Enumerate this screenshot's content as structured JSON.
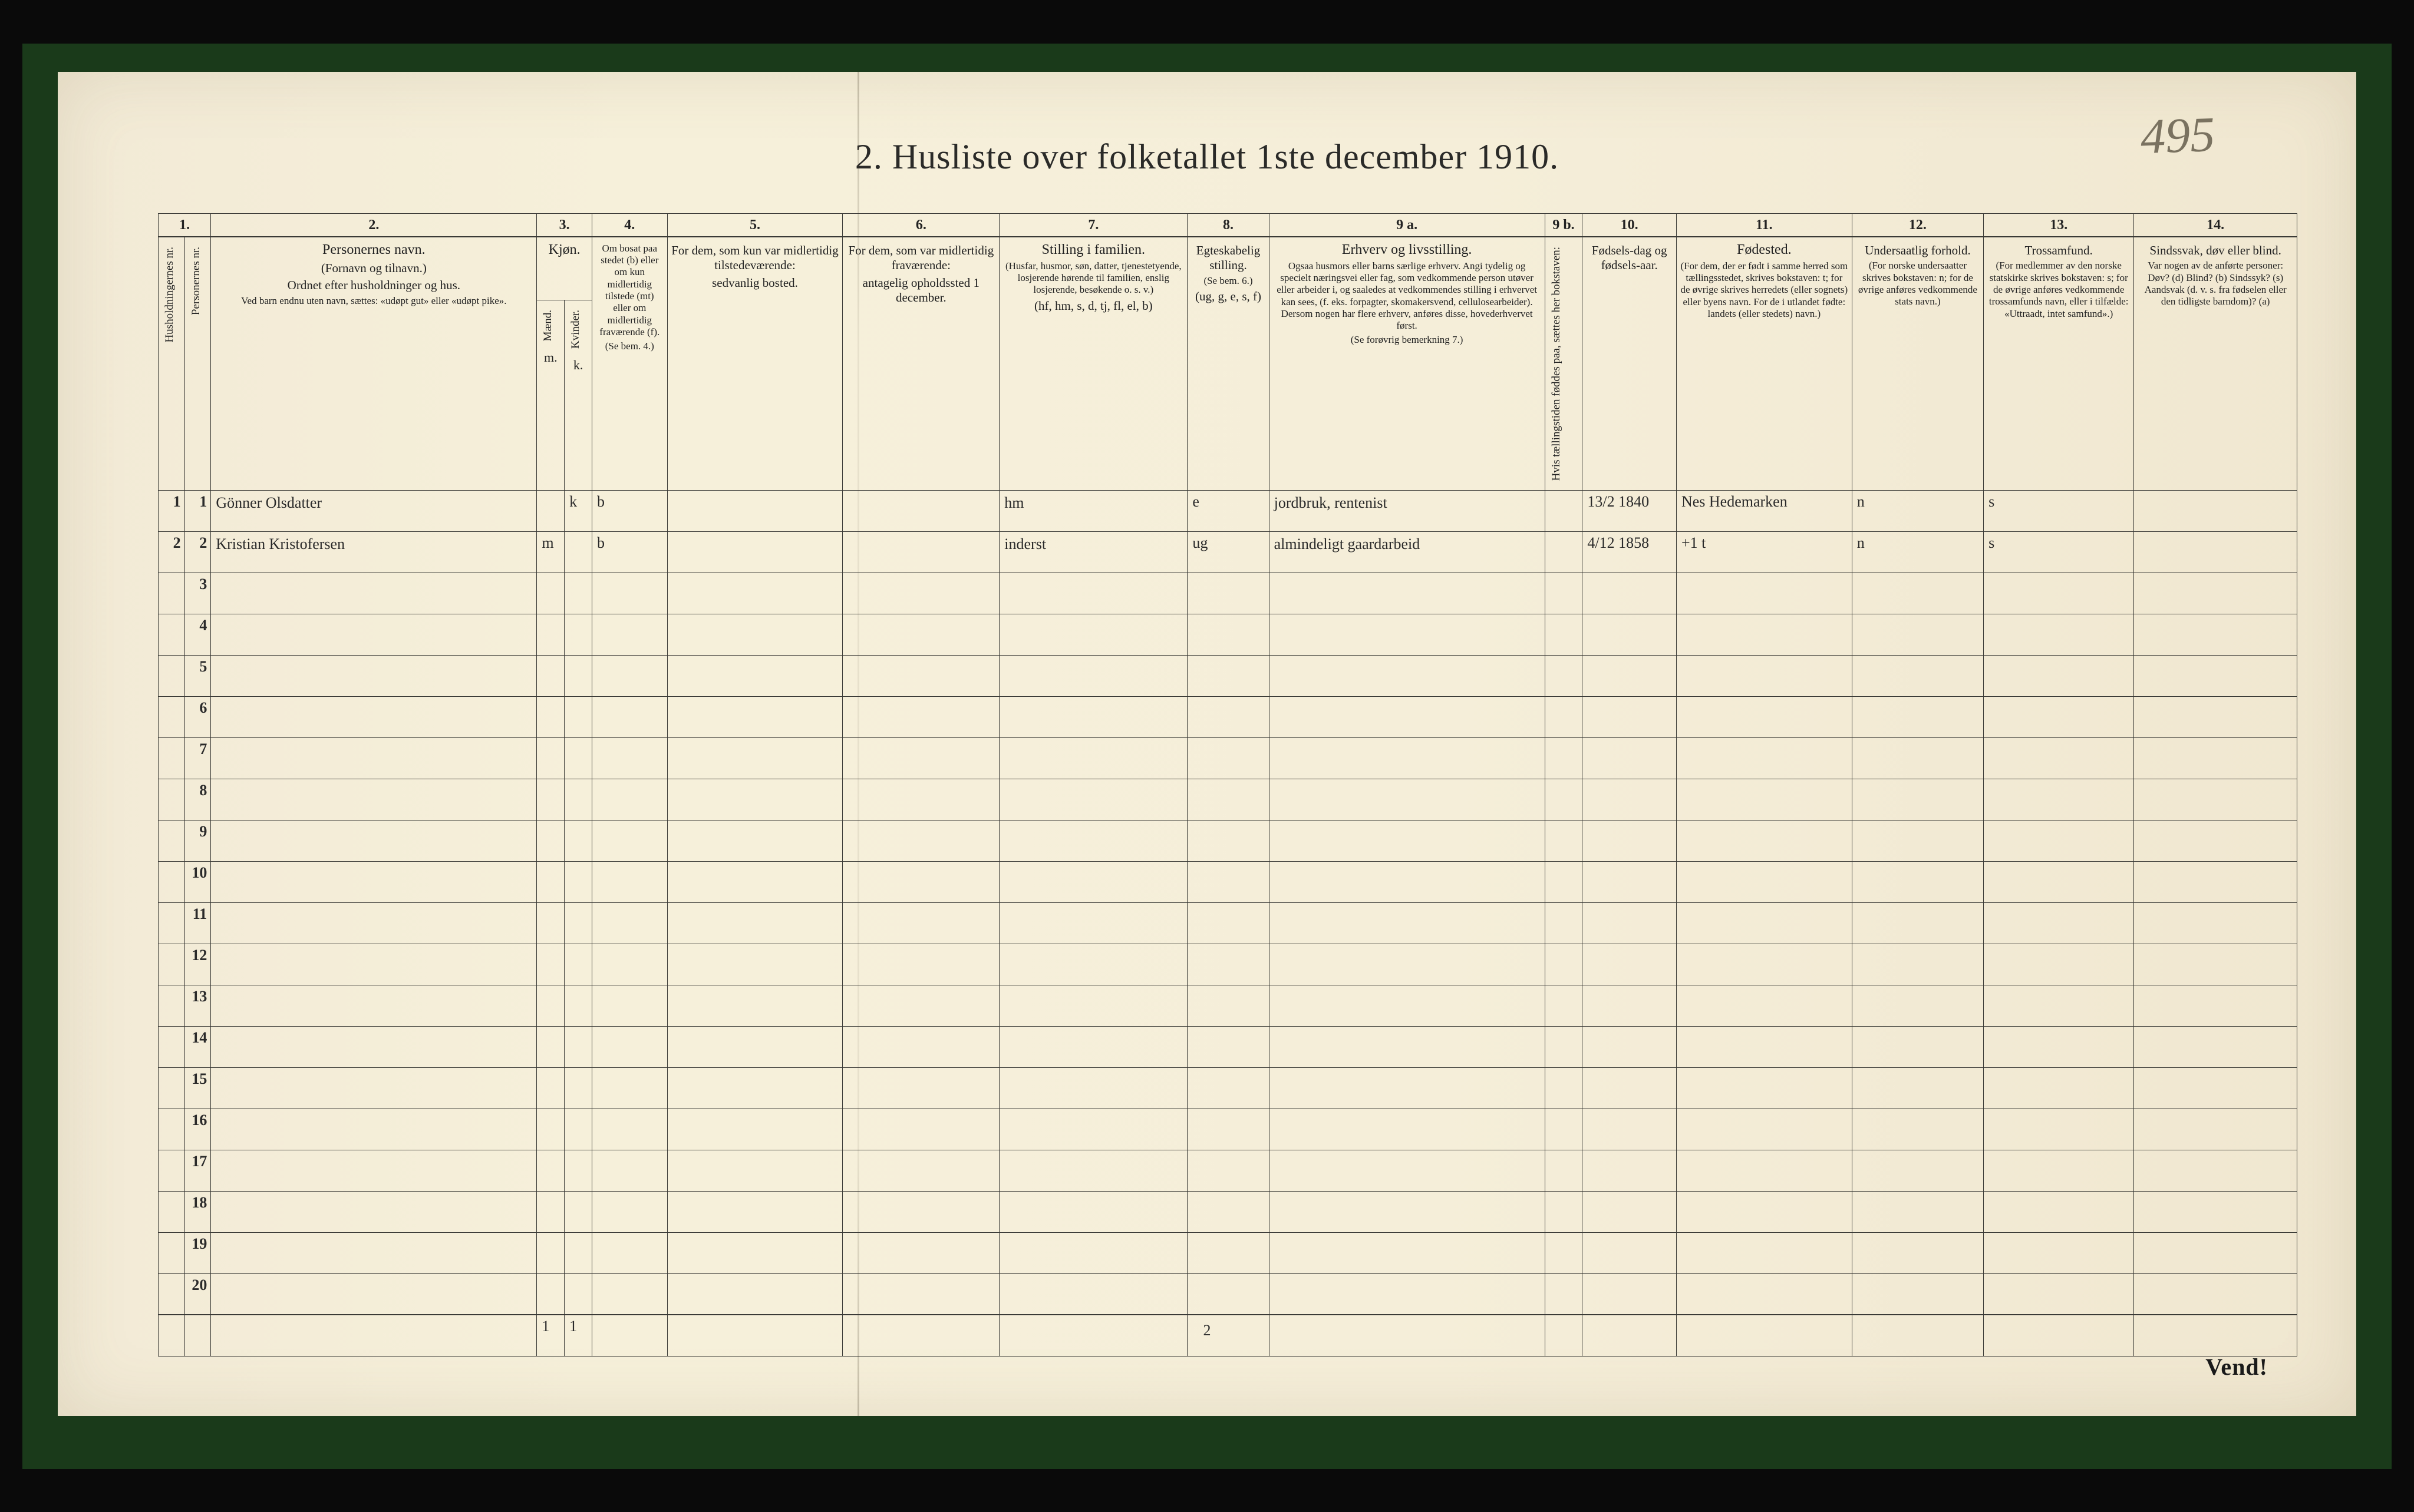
{
  "page": {
    "title": "2.  Husliste over folketallet 1ste december 1910.",
    "annotation_top_right": "495",
    "footer_page_number": "2",
    "turn_over": "Vend!"
  },
  "columns": {
    "nums": [
      "1.",
      "",
      "2.",
      "3.",
      "",
      "4.",
      "5.",
      "6.",
      "7.",
      "8.",
      "9 a.",
      "9 b.",
      "10.",
      "11.",
      "12.",
      "13.",
      "14."
    ],
    "h1_vert": "Husholdningernes nr.",
    "h1b_vert": "Personernes nr.",
    "h2_title": "Personernes navn.",
    "h2_sub1": "(Fornavn og tilnavn.)",
    "h2_sub2": "Ordnet efter husholdninger og hus.",
    "h2_sub3": "Ved barn endnu uten navn, sættes: «udøpt gut» eller «udøpt pike».",
    "h3_title": "Kjøn.",
    "h3_sub_m": "Mænd.",
    "h3_sub_k": "Kvinder.",
    "h3_mk_m": "m.",
    "h3_mk_k": "k.",
    "h4_title": "Om bosat paa stedet (b) eller om kun midlertidig tilstede (mt) eller om midlertidig fraværende (f).",
    "h4_sub": "(Se bem. 4.)",
    "h5_title": "For dem, som kun var midlertidig tilstedeværende:",
    "h5_sub": "sedvanlig bosted.",
    "h6_title": "For dem, som var midlertidig fraværende:",
    "h6_sub": "antagelig opholdssted 1 december.",
    "h7_title": "Stilling i familien.",
    "h7_sub1": "(Husfar, husmor, søn, datter, tjenestetyende, losjerende hørende til familien, enslig losjerende, besøkende o. s. v.)",
    "h7_sub2": "(hf, hm, s, d, tj, fl, el, b)",
    "h8_title": "Egteskabelig stilling.",
    "h8_sub1": "(Se bem. 6.)",
    "h8_sub2": "(ug, g, e, s, f)",
    "h9a_title": "Erhverv og livsstilling.",
    "h9a_sub": "Ogsaa husmors eller barns særlige erhverv. Angi tydelig og specielt næringsvei eller fag, som vedkommende person utøver eller arbeider i, og saaledes at vedkommendes stilling i erhvervet kan sees, (f. eks. forpagter, skomakersvend, cellulosearbeider). Dersom nogen har flere erhverv, anføres disse, hovederhvervet først.",
    "h9a_sub2": "(Se forøvrig bemerkning 7.)",
    "h9b_vert": "Hvis tællingstiden føddes paa, sættes her bokstaven:",
    "h10_title": "Fødsels-dag og fødsels-aar.",
    "h11_title": "Fødested.",
    "h11_sub": "(For dem, der er født i samme herred som tællingsstedet, skrives bokstaven: t; for de øvrige skrives herredets (eller sognets) eller byens navn. For de i utlandet fødte: landets (eller stedets) navn.)",
    "h12_title": "Undersaatlig forhold.",
    "h12_sub": "(For norske undersaatter skrives bokstaven: n; for de øvrige anføres vedkommende stats navn.)",
    "h13_title": "Trossamfund.",
    "h13_sub": "(For medlemmer av den norske statskirke skrives bokstaven: s; for de øvrige anføres vedkommende trossamfunds navn, eller i tilfælde: «Uttraadt, intet samfund».)",
    "h14_title": "Sindssvak, døv eller blind.",
    "h14_sub": "Var nogen av de anførte personer: Døv? (d)  Blind? (b)  Sindssyk? (s)  Aandsvak (d. v. s. fra fødselen eller den tidligste barndom)? (a)"
  },
  "rows": [
    {
      "hnr": "1",
      "pnr": "1",
      "name": "Gönner Olsdatter",
      "sex_m": "",
      "sex_k": "k",
      "residence": "b",
      "temp_present": "",
      "temp_absent": "",
      "family_pos": "hm",
      "marital": "e",
      "occupation": "jordbruk, rentenist",
      "col9b": "",
      "birth": "13/2 1840",
      "birthplace": "Nes Hedemarken",
      "nationality": "n",
      "faith": "s",
      "disability": ""
    },
    {
      "hnr": "2",
      "pnr": "2",
      "name": "Kristian Kristofersen",
      "sex_m": "m",
      "sex_k": "",
      "residence": "b",
      "temp_present": "",
      "temp_absent": "",
      "family_pos": "inderst",
      "marital": "ug",
      "occupation": "almindeligt gaardarbeid",
      "col9b": "",
      "birth": "4/12 1858",
      "birthplace": "+1  t",
      "nationality": "n",
      "faith": "s",
      "disability": ""
    }
  ],
  "row_numbers": [
    "3",
    "4",
    "5",
    "6",
    "7",
    "8",
    "9",
    "10",
    "11",
    "12",
    "13",
    "14",
    "15",
    "16",
    "17",
    "18",
    "19",
    "20"
  ],
  "summary": {
    "m": "1",
    "k": "1"
  }
}
